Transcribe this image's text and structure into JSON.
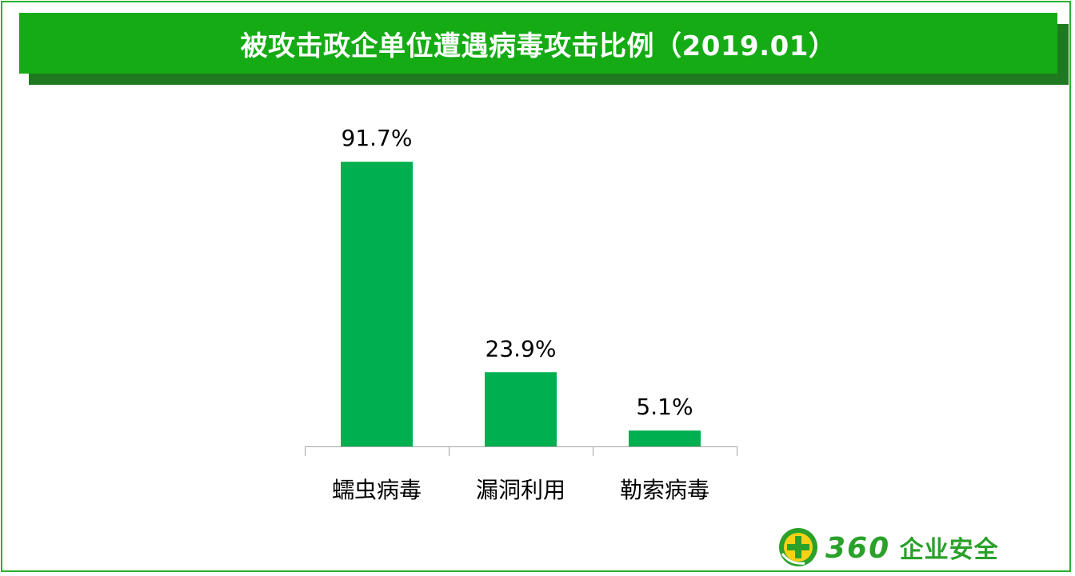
{
  "header": {
    "title": "被攻击政企单位遭遇病毒攻击比例（2019.01）"
  },
  "chart_data": {
    "type": "bar",
    "title": "被攻击政企单位遭遇病毒攻击比例（2019.01）",
    "categories": [
      "蠕虫病毒",
      "漏洞利用",
      "勒索病毒"
    ],
    "values": [
      91.7,
      23.9,
      5.1
    ],
    "value_labels": [
      "91.7%",
      "23.9%",
      "5.1%"
    ],
    "unit": "%",
    "ylim": [
      0,
      100
    ],
    "grid": false,
    "legend": "none",
    "xlabel": "",
    "ylabel": ""
  },
  "logo": {
    "number": "360",
    "text": "企业安全",
    "icon": "360-shield-plus-icon"
  },
  "colors": {
    "bar": "#00b050",
    "title_bg": "#15ab15",
    "title_shadow": "#1f7a1f",
    "frame": "#2db12d",
    "axis": "#a6a6a6",
    "logo_green": "#2aa12a",
    "logo_yellow": "#f7d117"
  }
}
